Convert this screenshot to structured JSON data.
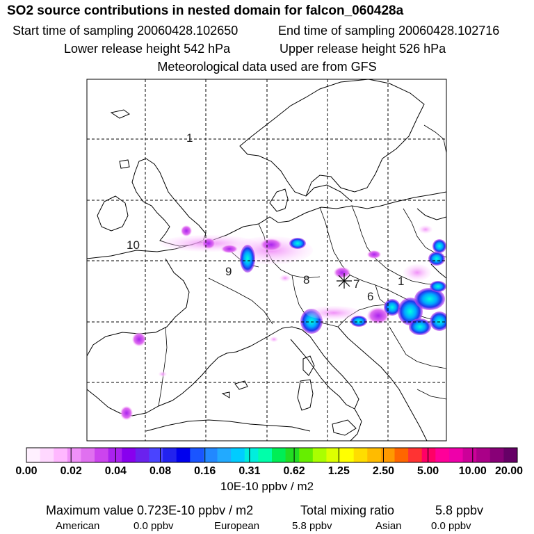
{
  "header": {
    "title": "SO2 source contributions in nested domain for falcon_060428a",
    "start_sampling": "Start time of sampling 20060428.102650",
    "end_sampling": "End time of sampling 20060428.102716",
    "lower_release": "Lower release height  542 hPa",
    "upper_release": "Upper release height  526 hPa",
    "met_data": "Meteorological data used are from GFS"
  },
  "chart_data": {
    "type": "heatmap",
    "colorbar": {
      "labels": [
        "0.00",
        "0.02",
        "0.04",
        "0.08",
        "0.16",
        "0.31",
        "0.62",
        "1.25",
        "2.50",
        "5.00",
        "10.00",
        "20.00"
      ],
      "colors": [
        "#fff0ff",
        "#ffd8ff",
        "#ffb8ff",
        "#f090f8",
        "#e070f0",
        "#cc44ee",
        "#aa22ee",
        "#8800ee",
        "#6a22ee",
        "#4a44ff",
        "#2222ee",
        "#0000ee",
        "#1a55ff",
        "#2288ff",
        "#22aaff",
        "#00ccff",
        "#00eedd",
        "#00ffaa",
        "#00ee55",
        "#22dd22",
        "#66ee00",
        "#aaff00",
        "#ddff00",
        "#ffff00",
        "#ffdd00",
        "#ffbb00",
        "#ff9900",
        "#ff6600",
        "#ff3333",
        "#ff0066",
        "#ff0099",
        "#ee00aa",
        "#cc0099",
        "#aa0088",
        "#880077",
        "#660066"
      ],
      "unit": "10E-10 ppbv / m2"
    },
    "track_labels": [
      "1",
      "10",
      "9",
      "8",
      "7",
      "6",
      "1"
    ],
    "grid": true
  },
  "footer": {
    "max_value": "Maximum value  0.723E-10 ppbv / m2",
    "total_label": "Total mixing ratio",
    "total_value": "5.8 ppbv",
    "regions": [
      {
        "name": "American",
        "value": "0.0 ppbv"
      },
      {
        "name": "European",
        "value": "5.8 ppbv"
      },
      {
        "name": "Asian",
        "value": "0.0 ppbv"
      }
    ]
  }
}
